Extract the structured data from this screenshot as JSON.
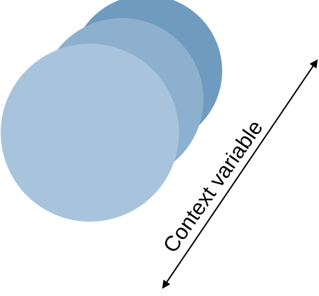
{
  "diagram": {
    "axis_label": "Context variable",
    "colors": {
      "circle_back": "#6f9bbf",
      "circle_middle": "#8eb0cf",
      "circle_front": "#a8c4dc",
      "arrow": "#000000",
      "background": "#ffffff"
    },
    "layers": [
      "back-layer",
      "middle-layer",
      "front-layer"
    ]
  }
}
